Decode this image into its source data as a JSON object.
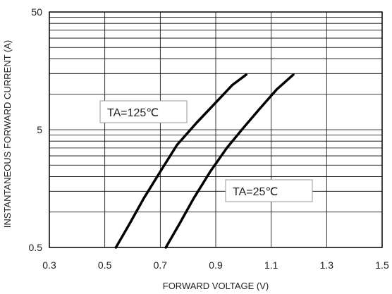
{
  "chart_data": {
    "type": "line",
    "title": "",
    "xlabel": "FORWARD VOLTAGE (V)",
    "ylabel": "INSTANTANEOUS FORWARD CURRENT (A)",
    "xlim": [
      0.3,
      1.5
    ],
    "ylim": [
      0.5,
      50
    ],
    "yscale": "log",
    "grid": true,
    "x_ticks": [
      "0.3",
      "0.5",
      "0.7",
      "0.9",
      "1.1",
      "1.3",
      "1.5"
    ],
    "y_ticks": [
      "0.5",
      "5",
      "50"
    ],
    "series": [
      {
        "name": "TA=125℃",
        "x": [
          0.54,
          0.59,
          0.64,
          0.7,
          0.76,
          0.83,
          0.9,
          0.96,
          1.01
        ],
        "y": [
          0.5,
          0.8,
          1.3,
          2.2,
          3.7,
          5.7,
          8.5,
          12.0,
          14.7
        ]
      },
      {
        "name": "TA=25℃",
        "x": [
          0.72,
          0.77,
          0.82,
          0.88,
          0.94,
          1.0,
          1.06,
          1.12,
          1.18
        ],
        "y": [
          0.5,
          0.8,
          1.3,
          2.2,
          3.5,
          5.2,
          7.6,
          11.0,
          14.7
        ]
      }
    ],
    "annotations": [
      {
        "label": "TA=125℃",
        "series": 0
      },
      {
        "label": "TA=25℃",
        "series": 1
      }
    ]
  }
}
